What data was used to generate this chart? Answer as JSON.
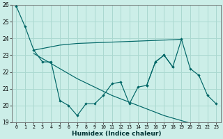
{
  "xlabel": "Humidex (Indice chaleur)",
  "bg_color": "#cceee8",
  "grid_color": "#aad8d0",
  "line_color": "#006666",
  "xlim": [
    -0.5,
    23.5
  ],
  "ylim": [
    19,
    26
  ],
  "xticks": [
    0,
    1,
    2,
    3,
    4,
    5,
    6,
    7,
    8,
    9,
    10,
    11,
    12,
    13,
    14,
    15,
    16,
    17,
    18,
    19,
    20,
    21,
    22,
    23
  ],
  "yticks": [
    19,
    20,
    21,
    22,
    23,
    24,
    25,
    26
  ],
  "s1x": [
    0,
    1,
    2,
    3,
    4,
    5,
    6,
    7,
    8,
    9,
    10,
    11,
    12,
    13,
    14,
    15,
    16,
    17,
    18
  ],
  "s1y": [
    25.9,
    24.7,
    23.3,
    22.6,
    22.6,
    20.3,
    20.0,
    19.4,
    20.1,
    20.1,
    20.6,
    21.3,
    21.4,
    20.1,
    21.1,
    21.2,
    22.6,
    23.0,
    22.3
  ],
  "s2x": [
    2,
    3,
    4,
    5,
    6,
    7,
    8,
    9,
    10,
    11,
    12,
    13,
    14,
    15,
    16,
    17,
    18,
    19
  ],
  "s2y": [
    23.3,
    23.4,
    23.5,
    23.6,
    23.65,
    23.7,
    23.72,
    23.74,
    23.76,
    23.78,
    23.8,
    23.82,
    23.84,
    23.86,
    23.88,
    23.9,
    23.92,
    23.95
  ],
  "s3x": [
    2,
    3,
    4,
    5,
    6,
    7,
    8,
    9,
    10,
    11,
    12,
    13,
    14,
    15,
    16,
    17,
    18,
    19,
    20,
    21,
    22,
    23
  ],
  "s3y": [
    23.1,
    22.8,
    22.5,
    22.2,
    21.9,
    21.6,
    21.35,
    21.1,
    20.85,
    20.6,
    20.4,
    20.2,
    20.0,
    19.8,
    19.6,
    19.4,
    19.25,
    19.1,
    18.95,
    18.85,
    18.75,
    18.65
  ],
  "s4x": [
    15,
    16,
    17,
    18,
    19,
    20,
    21,
    22,
    23
  ],
  "s4y": [
    21.2,
    22.6,
    23.0,
    22.3,
    23.95,
    22.2,
    21.8,
    20.6,
    20.1
  ]
}
